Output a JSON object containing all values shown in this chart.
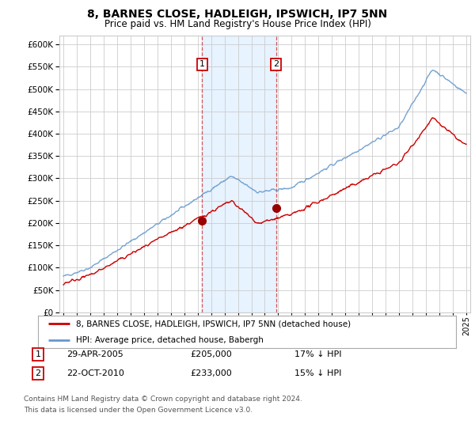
{
  "title": "8, BARNES CLOSE, HADLEIGH, IPSWICH, IP7 5NN",
  "subtitle": "Price paid vs. HM Land Registry's House Price Index (HPI)",
  "ylim": [
    0,
    620000
  ],
  "yticks": [
    0,
    50000,
    100000,
    150000,
    200000,
    250000,
    300000,
    350000,
    400000,
    450000,
    500000,
    550000,
    600000
  ],
  "legend_label_red": "8, BARNES CLOSE, HADLEIGH, IPSWICH, IP7 5NN (detached house)",
  "legend_label_blue": "HPI: Average price, detached house, Babergh",
  "footnote_line1": "Contains HM Land Registry data © Crown copyright and database right 2024.",
  "footnote_line2": "This data is licensed under the Open Government Licence v3.0.",
  "marker1_date": "29-APR-2005",
  "marker1_price": 205000,
  "marker1_hpi": "17% ↓ HPI",
  "marker2_date": "22-OCT-2010",
  "marker2_price": 233000,
  "marker2_hpi": "15% ↓ HPI",
  "sale1_x": 2005.33,
  "sale2_x": 2010.83,
  "color_red": "#cc0000",
  "color_blue": "#6699cc",
  "color_shade": "#ddeeff",
  "grid_color": "#cccccc",
  "background_color": "#ffffff"
}
